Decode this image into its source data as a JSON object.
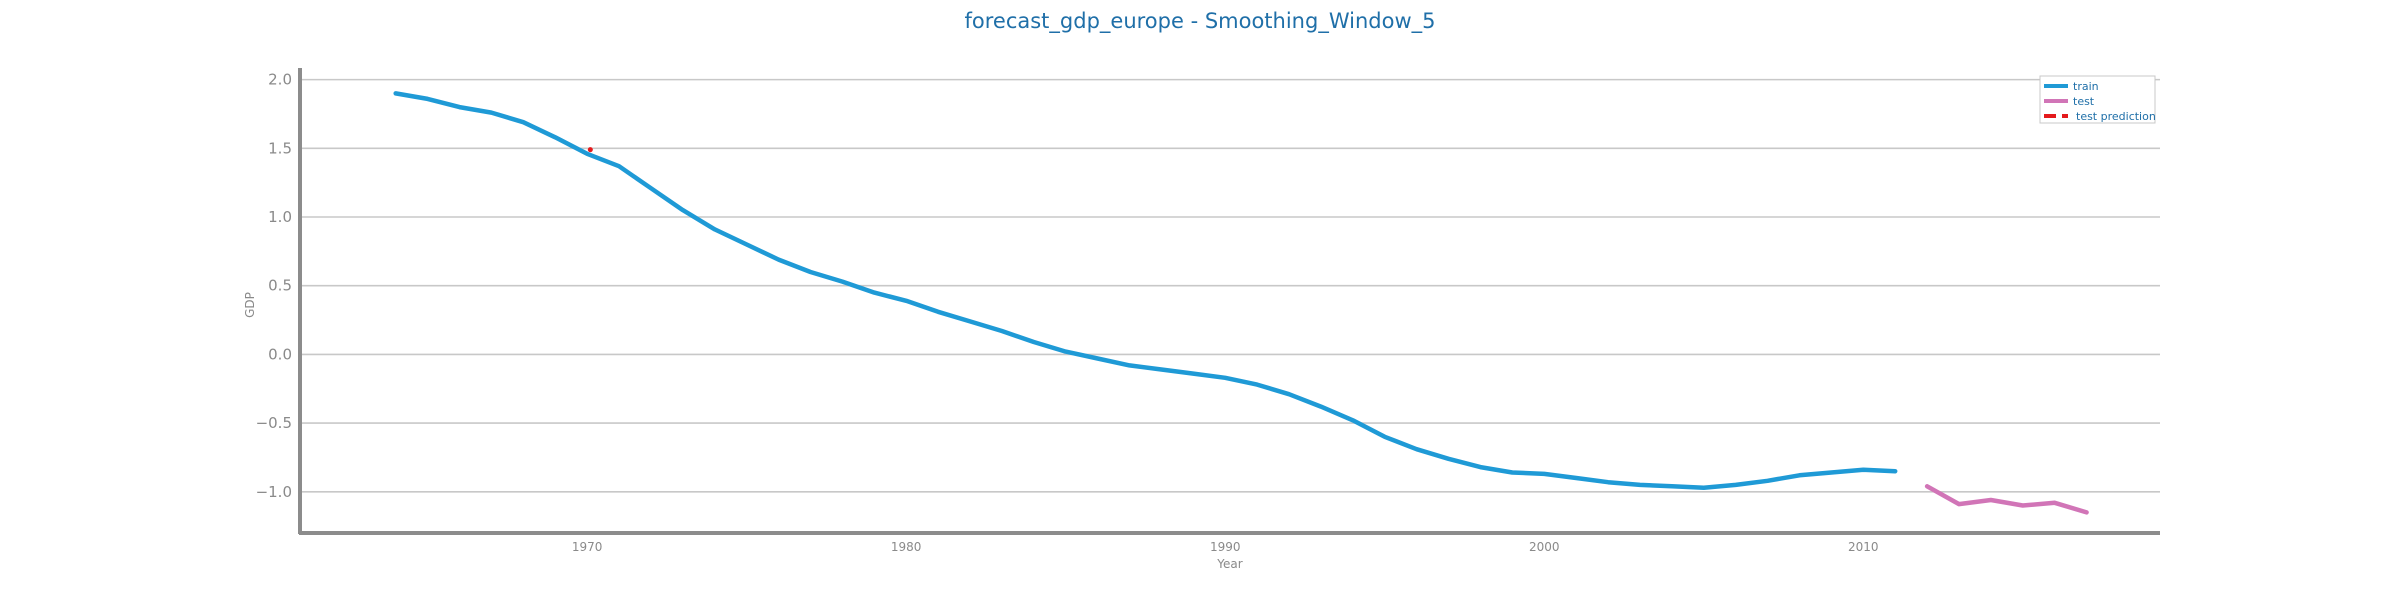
{
  "chart_data": {
    "type": "line",
    "title": "forecast_gdp_europe - Smoothing_Window_5",
    "xlabel": "Year",
    "ylabel": "GDP",
    "xlim": [
      1961,
      2019.3
    ],
    "ylim": [
      -1.3,
      2.07
    ],
    "yticks": [
      -1.0,
      -0.5,
      0.0,
      0.5,
      1.0,
      1.5,
      2.0
    ],
    "ytick_labels": [
      "−1.0",
      "−0.5",
      "0.0",
      "0.5",
      "1.0",
      "1.5",
      "2.0"
    ],
    "xticks": [
      1970,
      1980,
      1990,
      2000,
      2010
    ],
    "xtick_labels": [
      "1970",
      "1980",
      "1990",
      "2000",
      "2010"
    ],
    "grid": "horizontal",
    "legend": "top-right",
    "series": [
      {
        "name": "train",
        "color": "#1f9ad6",
        "style": "solid",
        "x": [
          1964,
          1965,
          1966,
          1967,
          1968,
          1969,
          1970,
          1971,
          1972,
          1973,
          1974,
          1975,
          1976,
          1977,
          1978,
          1979,
          1980,
          1981,
          1982,
          1983,
          1984,
          1985,
          1986,
          1987,
          1988,
          1989,
          1990,
          1991,
          1992,
          1993,
          1994,
          1995,
          1996,
          1997,
          1998,
          1999,
          2000,
          2001,
          2002,
          2003,
          2004,
          2005,
          2006,
          2007,
          2008,
          2009,
          2010,
          2011
        ],
        "y": [
          1.9,
          1.86,
          1.8,
          1.76,
          1.69,
          1.58,
          1.46,
          1.37,
          1.21,
          1.05,
          0.91,
          0.8,
          0.69,
          0.6,
          0.53,
          0.45,
          0.39,
          0.31,
          0.24,
          0.17,
          0.09,
          0.02,
          -0.03,
          -0.08,
          -0.11,
          -0.14,
          -0.17,
          -0.22,
          -0.29,
          -0.38,
          -0.48,
          -0.6,
          -0.69,
          -0.76,
          -0.82,
          -0.86,
          -0.87,
          -0.9,
          -0.93,
          -0.95,
          -0.96,
          -0.97,
          -0.95,
          -0.92,
          -0.88,
          -0.86,
          -0.84,
          -0.85
        ]
      },
      {
        "name": "test",
        "color": "#d175b7",
        "style": "solid",
        "x": [
          2012,
          2013,
          2014,
          2015,
          2016,
          2017
        ],
        "y": [
          -0.96,
          -1.09,
          -1.06,
          -1.1,
          -1.08,
          -1.15
        ]
      },
      {
        "name": "test prediction",
        "color": "#e41a1c",
        "style": "dashed",
        "x": [
          1970.1
        ],
        "y": [
          1.49
        ]
      }
    ]
  }
}
